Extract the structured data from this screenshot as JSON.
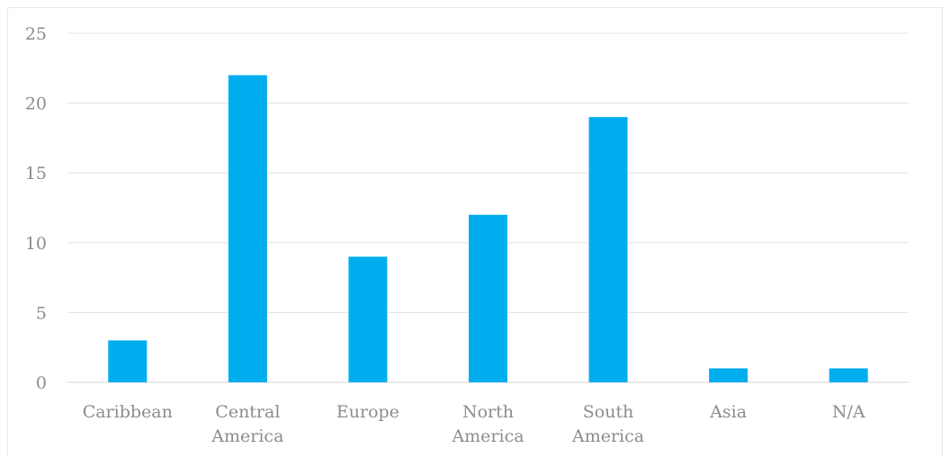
{
  "chart_data": {
    "type": "bar",
    "categories": [
      [
        "Caribbean"
      ],
      [
        "Central",
        "America"
      ],
      [
        "Europe"
      ],
      [
        "North",
        "America"
      ],
      [
        "South",
        "America"
      ],
      [
        "Asia"
      ],
      [
        "N/A"
      ]
    ],
    "values": [
      3,
      22,
      9,
      12,
      19,
      1,
      1
    ],
    "ylim": [
      0,
      25
    ],
    "yticks": [
      0,
      5,
      10,
      15,
      20,
      25
    ],
    "grid": true,
    "legend": "none",
    "bar_color": "#00AEEF"
  }
}
